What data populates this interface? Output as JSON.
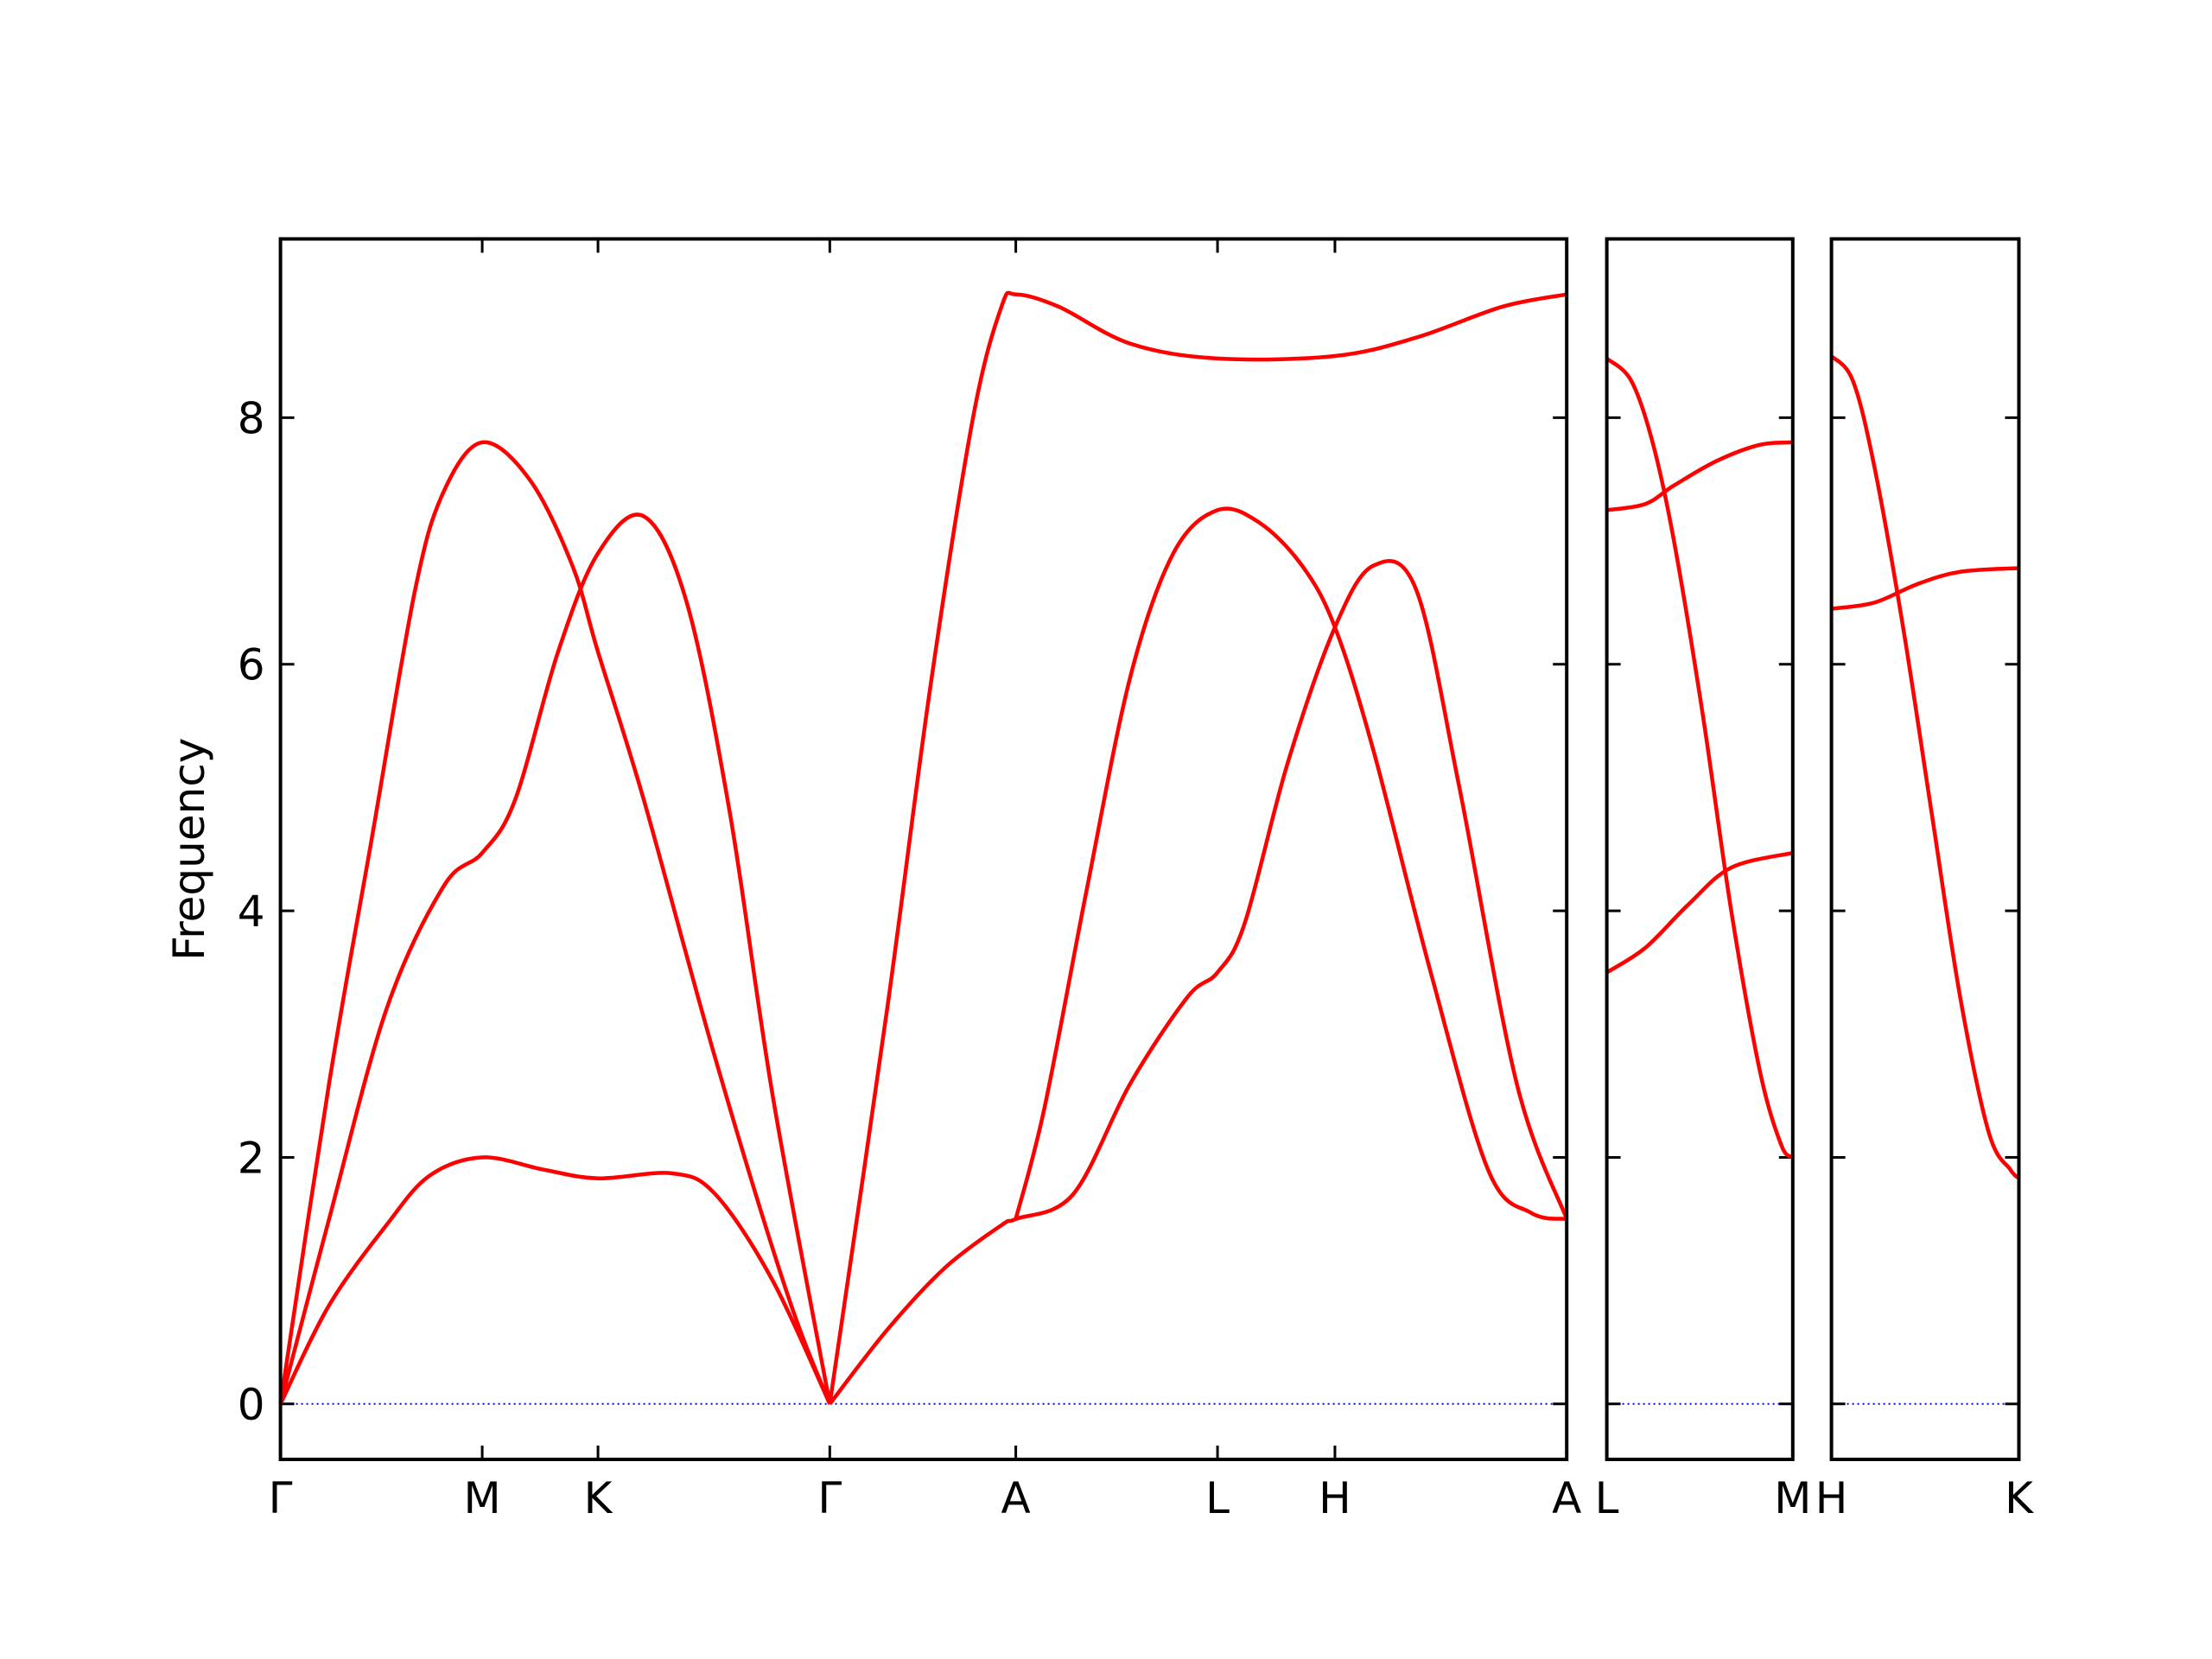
{
  "chart_data": [
    {
      "type": "line",
      "ylabel": "Frequency",
      "ytick_labels": true,
      "xlim": [
        0,
        6.376
      ],
      "ylim": [
        -0.45,
        9.45
      ],
      "yticks": [
        0,
        2,
        4,
        6,
        8
      ],
      "xticks": [
        {
          "value": 0,
          "label": "Γ"
        },
        {
          "value": 1.0,
          "label": "M"
        },
        {
          "value": 1.574,
          "label": "K"
        },
        {
          "value": 2.723,
          "label": "Γ"
        },
        {
          "value": 3.645,
          "label": "A"
        },
        {
          "value": 4.645,
          "label": "L"
        },
        {
          "value": 5.227,
          "label": "H"
        },
        {
          "value": 6.376,
          "label": "A"
        }
      ],
      "zero_line": {
        "value": 0,
        "color": "#0000ff"
      },
      "series": [
        {
          "color": "#ff0000",
          "x": [
            0,
            0.241,
            0.454,
            0.667,
            0.809,
            1.0,
            1.234,
            1.447,
            1.574,
            1.801,
            2.156,
            2.511,
            2.723
          ],
          "values": [
            0,
            2.6,
            4.6,
            6.6,
            7.4,
            7.8,
            7.5,
            6.8,
            6.1,
            4.9,
            2.8,
            0.9,
            0
          ]
        },
        {
          "color": "#ff0000",
          "x": [
            0,
            0.241,
            0.525,
            0.809,
            1.0,
            1.163,
            1.376,
            1.574,
            1.801,
            2.014,
            2.227,
            2.44,
            2.723
          ],
          "values": [
            0,
            1.5,
            3.2,
            4.2,
            4.47,
            4.9,
            6.1,
            6.9,
            7.2,
            6.5,
            4.8,
            2.5,
            0
          ]
        },
        {
          "color": "#ff0000",
          "x": [
            0,
            0.241,
            0.525,
            0.738,
            1.0,
            1.305,
            1.574,
            1.943,
            2.156,
            2.44,
            2.723
          ],
          "values": [
            0,
            0.8,
            1.45,
            1.85,
            2.0,
            1.9,
            1.83,
            1.87,
            1.7,
            1.0,
            0
          ]
        },
        {
          "color": "#ff0000",
          "x": [
            2.723,
            3.007,
            3.22,
            3.433,
            3.574,
            3.645,
            3.858,
            4.213,
            4.645,
            5.227,
            5.631,
            6.057,
            6.376
          ],
          "values": [
            0,
            3.2,
            5.8,
            8.0,
            8.9,
            9.0,
            8.9,
            8.6,
            8.48,
            8.5,
            8.65,
            8.9,
            9.0
          ]
        },
        {
          "color": "#ff0000",
          "x": [
            3.645,
            3.787,
            4.0,
            4.213,
            4.426,
            4.645,
            4.851,
            5.064,
            5.227,
            5.418,
            5.702,
            5.986,
            6.199,
            6.376
          ],
          "values": [
            1.5,
            2.4,
            4.2,
            5.9,
            6.9,
            7.25,
            7.15,
            6.8,
            6.3,
            5.3,
            3.5,
            1.9,
            1.55,
            1.5
          ]
        },
        {
          "color": "#ff0000",
          "x": [
            2.723,
            3.007,
            3.291,
            3.574,
            3.645,
            3.929,
            4.213,
            4.496,
            4.645,
            4.78,
            4.993,
            5.227,
            5.418,
            5.631,
            5.844,
            6.128,
            6.376
          ],
          "values": [
            0,
            0.6,
            1.1,
            1.45,
            1.5,
            1.7,
            2.6,
            3.3,
            3.5,
            3.9,
            5.2,
            6.3,
            6.8,
            6.6,
            5.0,
            2.6,
            1.5
          ]
        }
      ]
    },
    {
      "type": "line",
      "ytick_labels": false,
      "xlim": [
        0,
        0.922
      ],
      "ylim": [
        -0.45,
        9.45
      ],
      "yticks": [
        0,
        2,
        4,
        6,
        8
      ],
      "xticks": [
        {
          "value": 0,
          "label": "L"
        },
        {
          "value": 0.922,
          "label": "M"
        }
      ],
      "zero_line": {
        "value": 0,
        "color": "#0000ff"
      },
      "series": [
        {
          "color": "#ff0000",
          "x": [
            0,
            0.121,
            0.227,
            0.333,
            0.475,
            0.617,
            0.759,
            0.865,
            0.922
          ],
          "values": [
            8.48,
            8.3,
            7.8,
            7.0,
            5.6,
            4.0,
            2.7,
            2.1,
            2.0
          ]
        },
        {
          "color": "#ff0000",
          "x": [
            0,
            0.191,
            0.333,
            0.546,
            0.759,
            0.922
          ],
          "values": [
            7.25,
            7.3,
            7.45,
            7.65,
            7.78,
            7.8
          ]
        },
        {
          "color": "#ff0000",
          "x": [
            0,
            0.191,
            0.404,
            0.617,
            0.922
          ],
          "values": [
            3.5,
            3.7,
            4.05,
            4.35,
            4.47
          ]
        }
      ]
    },
    {
      "type": "line",
      "ytick_labels": false,
      "xlim": [
        0,
        0.929
      ],
      "ylim": [
        -0.45,
        9.45
      ],
      "yticks": [
        0,
        2,
        4,
        6,
        8
      ],
      "xticks": [
        {
          "value": 0,
          "label": "H"
        },
        {
          "value": 0.929,
          "label": "K"
        }
      ],
      "zero_line": {
        "value": 0,
        "color": "#0000ff"
      },
      "series": [
        {
          "color": "#ff0000",
          "x": [
            0,
            0.106,
            0.213,
            0.355,
            0.496,
            0.638,
            0.78,
            0.887,
            0.929
          ],
          "values": [
            8.5,
            8.3,
            7.6,
            6.3,
            4.8,
            3.3,
            2.2,
            1.9,
            1.83
          ]
        },
        {
          "color": "#ff0000",
          "x": [
            0,
            0.213,
            0.426,
            0.638,
            0.929
          ],
          "values": [
            6.45,
            6.5,
            6.65,
            6.75,
            6.78
          ]
        }
      ]
    }
  ]
}
